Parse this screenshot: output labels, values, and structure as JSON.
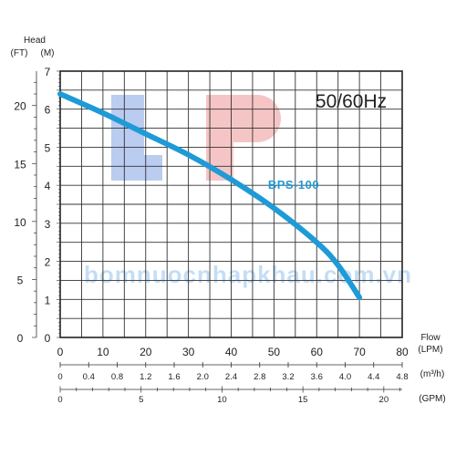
{
  "chart_data": {
    "type": "line",
    "title": "50/60Hz",
    "series_label": "BPS-100",
    "watermark": "bomnuocnhapkhau.com.vn",
    "y_title": "Head",
    "y_unit_left": "(FT)",
    "y_unit_right": "(M)",
    "x_title": "Flow",
    "x_unit": "(LPM)",
    "m3h_unit": "(m³/h)",
    "gpm_unit": "(GPM)",
    "xlim": [
      0,
      80
    ],
    "ylim": [
      0,
      7
    ],
    "x_ticks": [
      "0",
      "10",
      "20",
      "30",
      "40",
      "50",
      "60",
      "70",
      "80"
    ],
    "y_ticks": [
      "0",
      "1",
      "2",
      "3",
      "4",
      "5",
      "6",
      "7"
    ],
    "ft_ticks": [
      "5",
      "10",
      "15",
      "20"
    ],
    "m3h_ticks": [
      "0",
      "0.4",
      "0.8",
      "1.2",
      "1.6",
      "2.0",
      "2.4",
      "2.8",
      "3.2",
      "3.6",
      "4.0",
      "4.4",
      "4.8"
    ],
    "gpm_ticks": [
      "0",
      "5",
      "10",
      "15",
      "20"
    ],
    "grid": true,
    "line_color": "#1e9bd7",
    "x": [
      0,
      10,
      20,
      30,
      40,
      50,
      60,
      65,
      70
    ],
    "y": [
      6.4,
      5.9,
      5.35,
      4.8,
      4.15,
      3.4,
      2.5,
      1.9,
      1.05
    ]
  }
}
